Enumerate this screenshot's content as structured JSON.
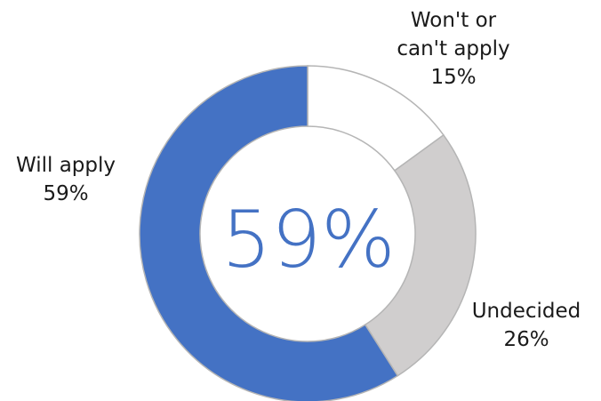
{
  "chart_data": {
    "type": "pie",
    "variant": "donut",
    "center_label": "59%",
    "colors": {
      "center_text": "#4472C4",
      "slice_stroke": "#B5B5B5"
    },
    "slices": [
      {
        "label_lines": [
          "Won't or",
          "can't apply"
        ],
        "value_text": "15%",
        "value": 15,
        "color": "#FFFFFF"
      },
      {
        "label_lines": [
          "Undecided"
        ],
        "value_text": "26%",
        "value": 26,
        "color": "#D0CECE"
      },
      {
        "label_lines": [
          "Will apply"
        ],
        "value_text": "59%",
        "value": 59,
        "color": "#4472C4"
      }
    ]
  }
}
